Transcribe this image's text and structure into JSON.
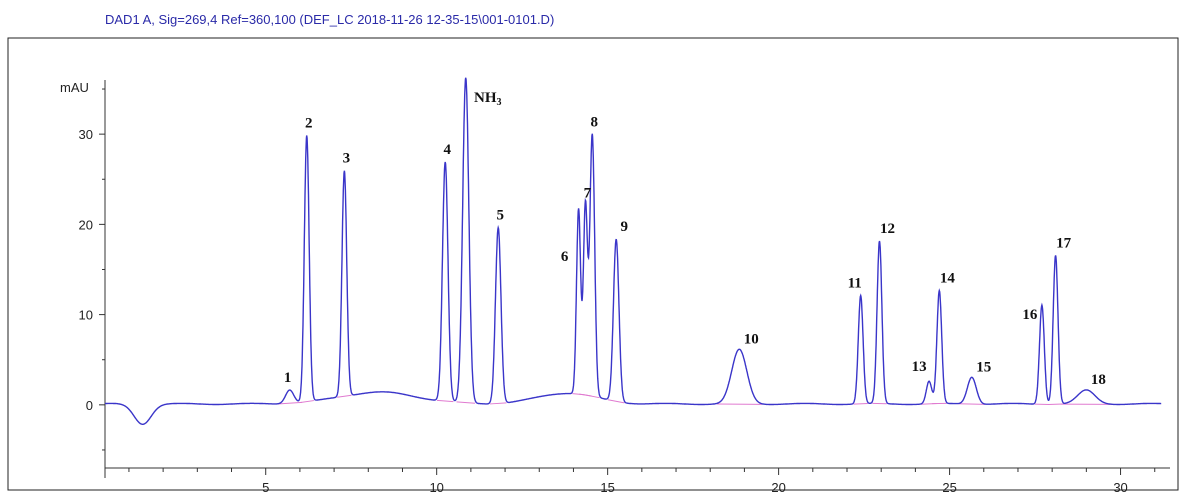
{
  "header": "DAD1 A, Sig=269,4 Ref=360,100 (DEF_LC 2018-11-26 12-35-15\\001-0101.D)",
  "chart_data": {
    "type": "line",
    "ylabel": "mAU",
    "xlim": [
      0.3,
      31.3
    ],
    "ylim": [
      -7,
      36
    ],
    "x_ticks": [
      5,
      10,
      15,
      20,
      25,
      30
    ],
    "y_ticks": [
      0,
      10,
      20,
      30
    ],
    "y_tick_labels": [
      "0",
      "10",
      "20",
      "30"
    ],
    "peaks": [
      {
        "label": "1",
        "rt": 5.7,
        "height": 1.5,
        "width": 0.12
      },
      {
        "label": "2",
        "rt": 6.2,
        "height": 29.5,
        "width": 0.07
      },
      {
        "label": "3",
        "rt": 7.3,
        "height": 25.0,
        "width": 0.07
      },
      {
        "label": "4",
        "rt": 10.25,
        "height": 26.5,
        "width": 0.08
      },
      {
        "label": "NH3",
        "rt": 10.85,
        "height": 36.0,
        "width": 0.09
      },
      {
        "label": "5",
        "rt": 11.8,
        "height": 19.5,
        "width": 0.08
      },
      {
        "label": "6",
        "rt": 14.15,
        "height": 20.5,
        "width": 0.06
      },
      {
        "label": "7",
        "rt": 14.35,
        "height": 21.0,
        "width": 0.06
      },
      {
        "label": "8",
        "rt": 14.55,
        "height": 29.0,
        "width": 0.07
      },
      {
        "label": "9",
        "rt": 15.25,
        "height": 18.0,
        "width": 0.08
      },
      {
        "label": "10",
        "rt": 18.85,
        "height": 6.0,
        "width": 0.22
      },
      {
        "label": "11",
        "rt": 22.4,
        "height": 12.0,
        "width": 0.07
      },
      {
        "label": "12",
        "rt": 22.95,
        "height": 18.0,
        "width": 0.07
      },
      {
        "label": "13",
        "rt": 24.4,
        "height": 2.5,
        "width": 0.08
      },
      {
        "label": "14",
        "rt": 24.7,
        "height": 12.5,
        "width": 0.07
      },
      {
        "label": "15",
        "rt": 25.65,
        "height": 3.0,
        "width": 0.13
      },
      {
        "label": "16",
        "rt": 27.7,
        "height": 11.0,
        "width": 0.07
      },
      {
        "label": "17",
        "rt": 28.1,
        "height": 16.5,
        "width": 0.07
      },
      {
        "label": "18",
        "rt": 29.0,
        "height": 1.5,
        "width": 0.25
      }
    ]
  }
}
